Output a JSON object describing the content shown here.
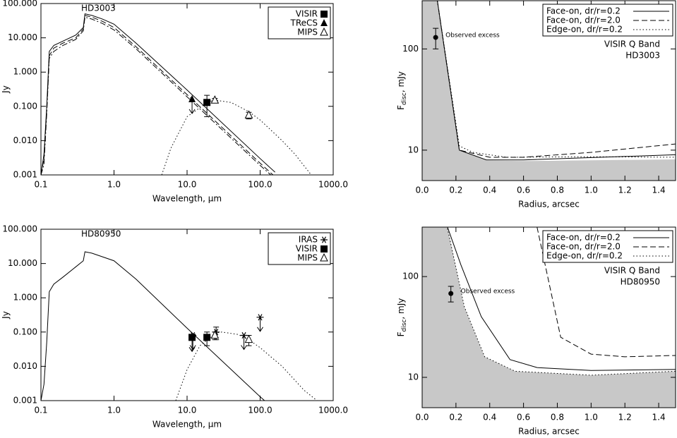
{
  "chart_data": [
    {
      "type": "line",
      "xscale": "log",
      "yscale": "log",
      "target": "HD3003",
      "xlabel": "Wavelength, μm",
      "ylabel": "Jy",
      "xlim": [
        0.1,
        1000
      ],
      "ylim": [
        0.001,
        100
      ],
      "xticks": [
        0.1,
        {
          "value": 1,
          "label": "1.0"
        },
        {
          "value": 10,
          "label": "10.0"
        },
        {
          "value": 100,
          "label": "100.0"
        },
        {
          "value": 1000,
          "label": "1000.0"
        }
      ],
      "yticks": [
        0.001,
        {
          "value": 0.01,
          "label": "0.010"
        },
        {
          "value": 0.1,
          "label": "0.100"
        },
        {
          "value": 1,
          "label": "1.000"
        },
        {
          "value": 10,
          "label": "10.000"
        },
        {
          "value": 100,
          "label": "100.000"
        }
      ],
      "legend": "upper right",
      "series": [
        {
          "style": "solid",
          "color": "#000000",
          "x": [
            0.1,
            0.11,
            0.12,
            0.13,
            0.15,
            0.2,
            0.3,
            0.38,
            0.4,
            0.5,
            0.7,
            1,
            2,
            10,
            100,
            160
          ],
          "values": [
            0.001,
            0.004,
            0.1,
            4,
            6,
            8,
            12,
            20,
            50,
            45,
            35,
            25,
            7,
            0.3,
            0.003,
            0.0012
          ]
        },
        {
          "style": "dashed",
          "color": "#000000",
          "x": [
            0.1,
            0.11,
            0.12,
            0.13,
            0.15,
            0.2,
            0.3,
            0.38,
            0.4,
            0.5,
            0.7,
            1,
            2,
            10,
            100,
            150
          ],
          "values": [
            0.001,
            0.003,
            0.08,
            3,
            5,
            7,
            10,
            18,
            45,
            40,
            30,
            20,
            5.5,
            0.22,
            0.0022,
            0.001
          ]
        },
        {
          "style": "dashdot",
          "color": "#000000",
          "x": [
            0.1,
            0.11,
            0.12,
            0.13,
            0.15,
            0.2,
            0.3,
            0.38,
            0.4,
            0.5,
            0.7,
            1,
            2,
            10,
            100,
            140
          ],
          "values": [
            0.001,
            0.002,
            0.06,
            2.5,
            4,
            6,
            9,
            16,
            40,
            35,
            26,
            17,
            4.8,
            0.19,
            0.0019,
            0.001
          ]
        },
        {
          "style": "dotted",
          "color": "#000000",
          "x": [
            4.5,
            6,
            10,
            20,
            25,
            40,
            70,
            100,
            200,
            300,
            500
          ],
          "values": [
            0.001,
            0.006,
            0.05,
            0.14,
            0.15,
            0.13,
            0.07,
            0.04,
            0.01,
            0.004,
            0.001
          ]
        },
        {
          "name": "VISIR",
          "marker": "square",
          "color": "#000000",
          "x": [
            18.7
          ],
          "values": [
            0.13
          ],
          "errors": [
            0.08
          ],
          "upper_limits": [
            false
          ]
        },
        {
          "name": "TReCS",
          "marker": "triangle",
          "color": "#000000",
          "x": [
            11.7
          ],
          "values": [
            0.16
          ],
          "errors": [
            null
          ],
          "upper_limits": [
            true
          ]
        },
        {
          "name": "MIPS",
          "marker": "open-triangle",
          "color": "#000000",
          "x": [
            24,
            70
          ],
          "values": [
            0.15,
            0.055
          ],
          "errors": [
            0.02,
            0.012
          ],
          "upper_limits": [
            false,
            false
          ]
        }
      ]
    },
    {
      "type": "line",
      "yscale": "log",
      "ylabel": "F",
      "ylabel_sub": "disc",
      "ylabel_rest": ", mJy",
      "xlabel": "Radius, arcsec",
      "band": "VISIR Q Band",
      "target": "HD3003",
      "xlim": [
        0,
        1.5
      ],
      "ylim": [
        5,
        300
      ],
      "xticks": [
        {
          "value": 0,
          "label": "0.0"
        },
        0.2,
        0.4,
        0.6,
        0.8,
        {
          "value": 1,
          "label": "1.0"
        },
        1.2,
        1.4
      ],
      "yticks": [
        10,
        100
      ],
      "legend": "upper right",
      "observed": {
        "label": "Observed excess",
        "x": 0.08,
        "y": 130,
        "error": 30
      },
      "series": [
        {
          "fill": "#c8c8c8",
          "x": [
            0,
            0.09,
            0.22,
            0.38,
            0.6,
            1.5
          ],
          "values": [
            300,
            300,
            10,
            7.9,
            7.8,
            8.1
          ]
        },
        {
          "name": "Face-on, dr/r=0.2",
          "style": "solid",
          "color": "#000000",
          "x": [
            0.09,
            0.22,
            0.38,
            0.6,
            1.5
          ],
          "values": [
            300,
            10,
            8.0,
            8.0,
            9.0
          ]
        },
        {
          "name": "Face-on, dr/r=2.0",
          "style": "dashed",
          "color": "#000000",
          "x": [
            0.09,
            0.22,
            0.4,
            0.6,
            1.0,
            1.5
          ],
          "values": [
            300,
            10,
            8.5,
            8.5,
            9.5,
            11.5
          ]
        },
        {
          "name": "Edge-on, dr/r=0.2",
          "style": "dotted",
          "color": "#000000",
          "x": [
            0.09,
            0.22,
            0.3,
            0.5,
            1.0,
            1.5
          ],
          "values": [
            300,
            11,
            9.5,
            8.5,
            8.6,
            8.5
          ]
        }
      ]
    },
    {
      "type": "line",
      "xscale": "log",
      "yscale": "log",
      "target": "HD80950",
      "xlabel": "Wavelength, μm",
      "ylabel": "Jy",
      "xlim": [
        0.1,
        1000
      ],
      "ylim": [
        0.001,
        100
      ],
      "xticks": [
        0.1,
        {
          "value": 1,
          "label": "1.0"
        },
        {
          "value": 10,
          "label": "10.0"
        },
        {
          "value": 100,
          "label": "100.0"
        },
        {
          "value": 1000,
          "label": "1000.0"
        }
      ],
      "yticks": [
        0.001,
        {
          "value": 0.01,
          "label": "0.010"
        },
        {
          "value": 0.1,
          "label": "0.100"
        },
        {
          "value": 1,
          "label": "1.000"
        },
        {
          "value": 10,
          "label": "10.000"
        },
        {
          "value": 100,
          "label": "100.000"
        }
      ],
      "legend": "upper right",
      "series": [
        {
          "style": "solid",
          "color": "#000000",
          "x": [
            0.1,
            0.11,
            0.12,
            0.13,
            0.15,
            0.2,
            0.3,
            0.38,
            0.4,
            0.5,
            1,
            2,
            10,
            100,
            115
          ],
          "values": [
            0.001,
            0.003,
            0.05,
            1.5,
            2.5,
            4,
            8,
            12,
            22,
            20,
            12,
            3.5,
            0.13,
            0.0013,
            0.001
          ]
        },
        {
          "style": "dotted",
          "color": "#000000",
          "x": [
            7,
            10,
            15,
            25,
            30,
            50,
            70,
            100,
            200,
            400,
            600
          ],
          "values": [
            0.001,
            0.008,
            0.04,
            0.095,
            0.1,
            0.085,
            0.06,
            0.035,
            0.01,
            0.002,
            0.001
          ]
        },
        {
          "name": "IRAS",
          "marker": "asterisk",
          "color": "#000000",
          "x": [
            12,
            25,
            60,
            100
          ],
          "values": [
            0.08,
            0.1,
            0.08,
            0.27
          ],
          "errors": [
            null,
            0.04,
            null,
            null
          ],
          "upper_limits": [
            true,
            false,
            true,
            true
          ]
        },
        {
          "name": "VISIR",
          "marker": "square",
          "color": "#000000",
          "x": [
            11.7,
            18.7
          ],
          "values": [
            0.07,
            0.07
          ],
          "errors": [
            null,
            0.03
          ],
          "upper_limits": [
            true,
            false
          ]
        },
        {
          "name": "MIPS",
          "marker": "open-triangle",
          "color": "#000000",
          "x": [
            24,
            70
          ],
          "values": [
            0.08,
            0.06
          ],
          "errors": [
            0.02,
            0.02
          ],
          "upper_limits": [
            false,
            false
          ]
        }
      ]
    },
    {
      "type": "line",
      "yscale": "log",
      "ylabel": "F",
      "ylabel_sub": "disc",
      "ylabel_rest": ", mJy",
      "xlabel": "Radius, arcsec",
      "band": "VISIR Q Band",
      "target": "HD80950",
      "xlim": [
        0,
        1.5
      ],
      "ylim": [
        5,
        310
      ],
      "xticks": [
        {
          "value": 0,
          "label": "0.0"
        },
        0.2,
        0.4,
        0.6,
        0.8,
        {
          "value": 1,
          "label": "1.0"
        },
        1.2,
        1.4
      ],
      "yticks": [
        10,
        100
      ],
      "legend": "upper right",
      "observed": {
        "label": "Observed excess",
        "x": 0.17,
        "y": 68,
        "error": 12
      },
      "series": [
        {
          "fill": "#c8c8c8",
          "x": [
            0,
            0.15,
            0.25,
            0.37,
            0.55,
            1.0,
            1.5
          ],
          "values": [
            310,
            310,
            50,
            16,
            11.5,
            10.5,
            11.5
          ]
        },
        {
          "name": "Face-on, dr/r=0.2",
          "style": "solid",
          "color": "#000000",
          "x": [
            0.15,
            0.23,
            0.35,
            0.52,
            0.68,
            1.0,
            1.5
          ],
          "values": [
            310,
            130,
            40,
            15,
            12.5,
            11.7,
            12
          ]
        },
        {
          "name": "Face-on, dr/r=2.0",
          "style": "dashed",
          "color": "#000000",
          "x": [
            0.68,
            0.82,
            1.0,
            1.2,
            1.5
          ],
          "values": [
            310,
            25,
            17,
            16,
            16.5
          ]
        },
        {
          "name": "Edge-on, dr/r=0.2",
          "style": "dotted",
          "color": "#000000",
          "x": [
            0.15,
            0.25,
            0.37,
            0.55,
            1.0,
            1.5
          ],
          "values": [
            300,
            50,
            16,
            11.5,
            10.5,
            11.5
          ]
        }
      ]
    }
  ]
}
